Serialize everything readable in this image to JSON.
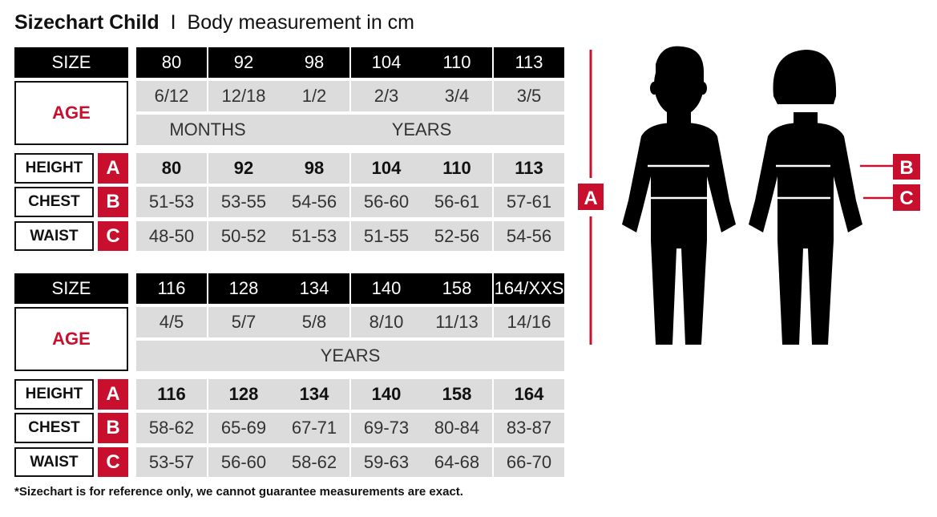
{
  "title": {
    "main": "Sizechart Child",
    "separator": "I",
    "sub": "Body measurement in cm"
  },
  "labels": {
    "size": "SIZE",
    "age": "AGE",
    "height": "HEIGHT",
    "chest": "CHEST",
    "waist": "WAIST",
    "a": "A",
    "b": "B",
    "c": "C"
  },
  "tables": [
    {
      "sizes": [
        "80",
        "92",
        "98",
        "104",
        "110",
        "113"
      ],
      "ages": [
        "6/12",
        "12/18",
        "1/2",
        "2/3",
        "3/4",
        "3/5"
      ],
      "units": [
        {
          "label": "MONTHS",
          "span": 2
        },
        {
          "label": "YEARS",
          "span": 4
        }
      ],
      "height": [
        "80",
        "92",
        "98",
        "104",
        "110",
        "113"
      ],
      "chest": [
        "51-53",
        "53-55",
        "54-56",
        "56-60",
        "56-61",
        "57-61"
      ],
      "waist": [
        "48-50",
        "50-52",
        "51-53",
        "51-55",
        "52-56",
        "54-56"
      ]
    },
    {
      "sizes": [
        "116",
        "128",
        "134",
        "140",
        "158",
        "164/XXS"
      ],
      "ages": [
        "4/5",
        "5/7",
        "5/8",
        "8/10",
        "11/13",
        "14/16"
      ],
      "units": [
        {
          "label": "YEARS",
          "span": 6
        }
      ],
      "height": [
        "116",
        "128",
        "134",
        "140",
        "158",
        "164"
      ],
      "chest": [
        "58-62",
        "65-69",
        "67-71",
        "69-73",
        "80-84",
        "83-87"
      ],
      "waist": [
        "53-57",
        "56-60",
        "58-62",
        "59-63",
        "64-68",
        "66-70"
      ]
    }
  ],
  "figure": {
    "markers": [
      "A",
      "B",
      "C"
    ],
    "figures": [
      "boy-silhouette",
      "girl-silhouette"
    ]
  },
  "footnote": "*Sizechart is for reference only, we cannot guarantee measurements are exact.",
  "colors": {
    "accent": "#c8102e",
    "header": "#000000",
    "cell": "#dcdcdc"
  }
}
